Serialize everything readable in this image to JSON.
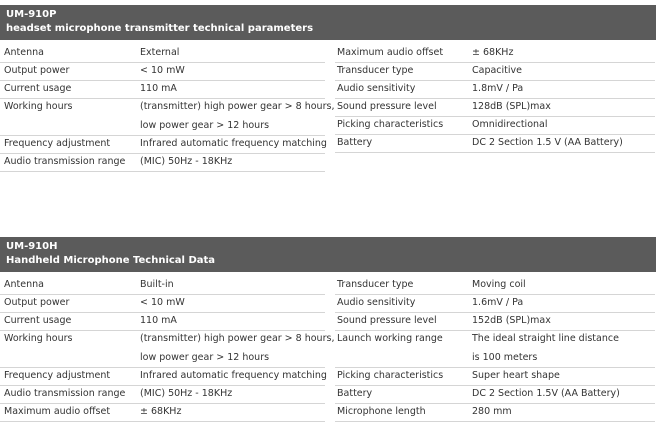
{
  "sections": [
    {
      "model": "UM-910P",
      "title": "headset microphone transmitter technical parameters",
      "left": [
        [
          "Antenna",
          "External"
        ],
        [
          "Output power",
          "< 10 mW"
        ],
        [
          "Current usage",
          "110 mA"
        ],
        [
          "Working hours",
          [
            "(transmitter) high power gear > 8 hours,",
            "low power gear > 12 hours"
          ]
        ],
        [
          "Frequency adjustment",
          "Infrared automatic frequency matching"
        ],
        [
          "Audio transmission range",
          "(MIC) 50Hz - 18KHz"
        ]
      ],
      "right": [
        [
          "Maximum audio offset",
          "± 68KHz"
        ],
        [
          "Transducer type",
          "Capacitive"
        ],
        [
          "Audio sensitivity",
          "1.8mV / Pa"
        ],
        [
          "Sound pressure level",
          "128dB (SPL)max"
        ],
        [
          "Picking characteristics",
          "Omnidirectional"
        ],
        [
          "Battery",
          "DC 2 Section 1.5 V (AA Battery)"
        ]
      ]
    },
    {
      "model": "UM-910H",
      "title": "Handheld Microphone Technical Data",
      "left": [
        [
          "Antenna",
          "Built-in"
        ],
        [
          "Output power",
          "< 10 mW"
        ],
        [
          "Current usage",
          "110 mA"
        ],
        [
          "Working hours",
          [
            "(transmitter) high power gear > 8 hours,",
            "low power gear > 12 hours"
          ]
        ],
        [
          "Frequency adjustment",
          "Infrared automatic frequency matching"
        ],
        [
          "Audio transmission range",
          "(MIC) 50Hz - 18KHz"
        ],
        [
          "Maximum audio offset",
          "± 68KHz"
        ]
      ],
      "right": [
        [
          "Transducer type",
          "Moving coil"
        ],
        [
          "Audio sensitivity",
          "1.6mV / Pa"
        ],
        [
          "Sound pressure level",
          "152dB (SPL)max"
        ],
        [
          "Launch working range",
          [
            "The ideal straight line distance",
            "is 100 meters"
          ]
        ],
        [
          "Picking characteristics",
          "Super heart shape"
        ],
        [
          "Battery",
          "DC 2 Section 1.5V (AA Battery)"
        ],
        [
          "Microphone length",
          "280 mm"
        ]
      ]
    }
  ]
}
